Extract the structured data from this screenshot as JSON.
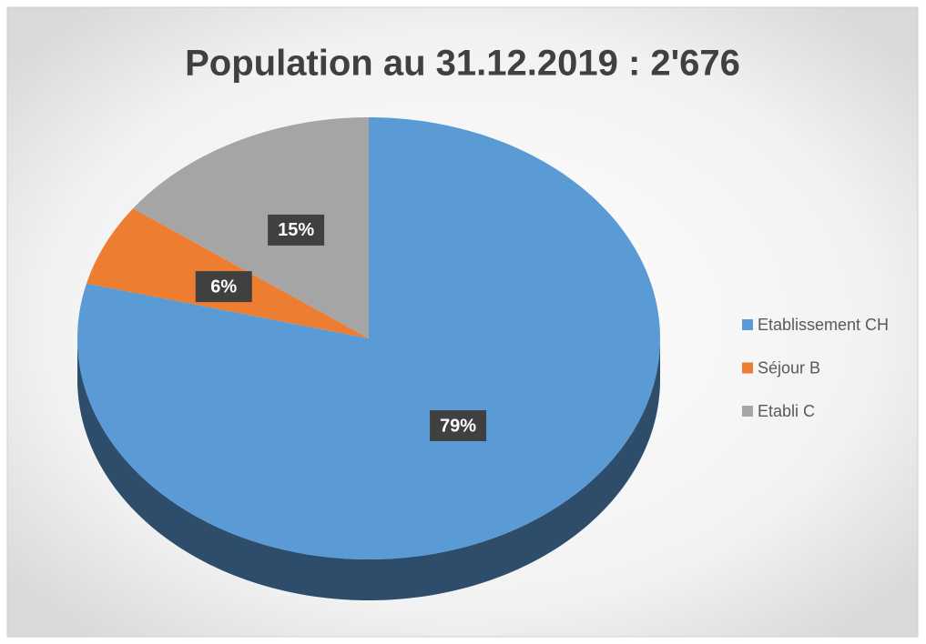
{
  "chart_data": {
    "type": "pie",
    "title": "Population au 31.12.2019 : 2'676",
    "categories": [
      "Etablissement CH",
      "Séjour B",
      "Etabli C"
    ],
    "values": [
      79,
      6,
      15
    ],
    "value_labels": [
      "79%",
      "6%",
      "15%"
    ],
    "colors": [
      "#5b9bd5",
      "#ed7d31",
      "#a5a5a5"
    ],
    "legend": "right"
  }
}
